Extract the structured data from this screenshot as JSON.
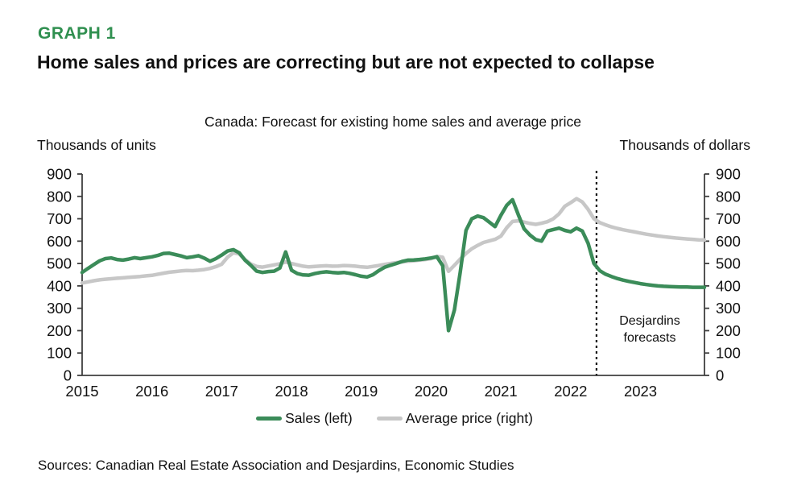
{
  "header": {
    "graph_label": "GRAPH 1",
    "title": "Home sales and prices are correcting but are not expected to collapse"
  },
  "chart": {
    "subtitle": "Canada: Forecast for existing home sales and average price",
    "left_axis_title": "Thousands of units",
    "right_axis_title": "Thousands of dollars",
    "annotation": {
      "line1": "Desjardins",
      "line2": "forecasts"
    }
  },
  "legend": {
    "sales": "Sales (left)",
    "price": "Average price (right)"
  },
  "footer": {
    "sources": "Sources: Canadian Real Estate Association and Desjardins, Economic Studies"
  },
  "colors": {
    "heading_green": "#2f8f4f",
    "sales_green": "#3b8c59",
    "price_gray": "#c7c7c7",
    "axis": "#3f3f3f",
    "forecast_line": "#111111"
  },
  "chart_data": {
    "type": "line",
    "title": "Canada: Forecast for existing home sales and average price",
    "xlabel": "",
    "ylabel_left": "Thousands of units",
    "ylabel_right": "Thousands of dollars",
    "ylim": [
      0,
      900
    ],
    "y_ticks": [
      0,
      100,
      200,
      300,
      400,
      500,
      600,
      700,
      800,
      900
    ],
    "x_tick_labels": [
      "2015",
      "2016",
      "2017",
      "2018",
      "2019",
      "2020",
      "2021",
      "2022",
      "2023"
    ],
    "x_start_year": 2015,
    "points_per_year": 12,
    "x_years_span": 8.9167,
    "grid": false,
    "legend_position": "bottom",
    "forecast_start_x": 2022.37,
    "forecast_note": "Desjardins forecasts",
    "series": [
      {
        "id": "sales",
        "name": "Sales (left)",
        "axis": "left",
        "unit": "thousands of units",
        "color": "#3b8c59",
        "values": [
          460,
          478,
          495,
          512,
          522,
          525,
          518,
          515,
          520,
          526,
          522,
          526,
          530,
          536,
          545,
          546,
          540,
          534,
          526,
          530,
          535,
          524,
          510,
          522,
          538,
          556,
          562,
          548,
          515,
          492,
          466,
          460,
          464,
          466,
          480,
          552,
          470,
          455,
          449,
          448,
          455,
          460,
          463,
          460,
          458,
          460,
          456,
          450,
          443,
          440,
          450,
          468,
          483,
          492,
          500,
          509,
          515,
          516,
          518,
          521,
          525,
          530,
          490,
          200,
          292,
          460,
          648,
          700,
          712,
          705,
          685,
          665,
          715,
          760,
          785,
          718,
          655,
          627,
          607,
          600,
          645,
          652,
          658,
          648,
          642,
          658,
          645,
          590,
          500,
          468,
          452,
          442,
          433,
          426,
          420,
          415,
          410,
          406,
          403,
          400,
          398,
          397,
          396,
          395,
          395,
          394,
          394,
          394
        ]
      },
      {
        "id": "price",
        "name": "Average price (right)",
        "axis": "right",
        "unit": "thousands of dollars",
        "color": "#c7c7c7",
        "values": [
          413,
          418,
          423,
          427,
          430,
          432,
          434,
          436,
          438,
          440,
          442,
          445,
          447,
          452,
          457,
          461,
          464,
          467,
          469,
          468,
          470,
          473,
          478,
          486,
          497,
          528,
          548,
          543,
          518,
          498,
          487,
          484,
          489,
          494,
          499,
          507,
          500,
          494,
          488,
          485,
          487,
          489,
          490,
          488,
          489,
          491,
          490,
          488,
          485,
          483,
          487,
          491,
          496,
          500,
          504,
          507,
          510,
          512,
          515,
          518,
          522,
          532,
          528,
          465,
          492,
          520,
          545,
          566,
          581,
          594,
          601,
          608,
          622,
          660,
          688,
          691,
          685,
          679,
          675,
          680,
          687,
          700,
          722,
          756,
          772,
          790,
          775,
          742,
          700,
          683,
          673,
          664,
          657,
          651,
          646,
          641,
          636,
          631,
          627,
          623,
          620,
          617,
          614,
          612,
          610,
          608,
          606,
          605
        ]
      }
    ]
  }
}
